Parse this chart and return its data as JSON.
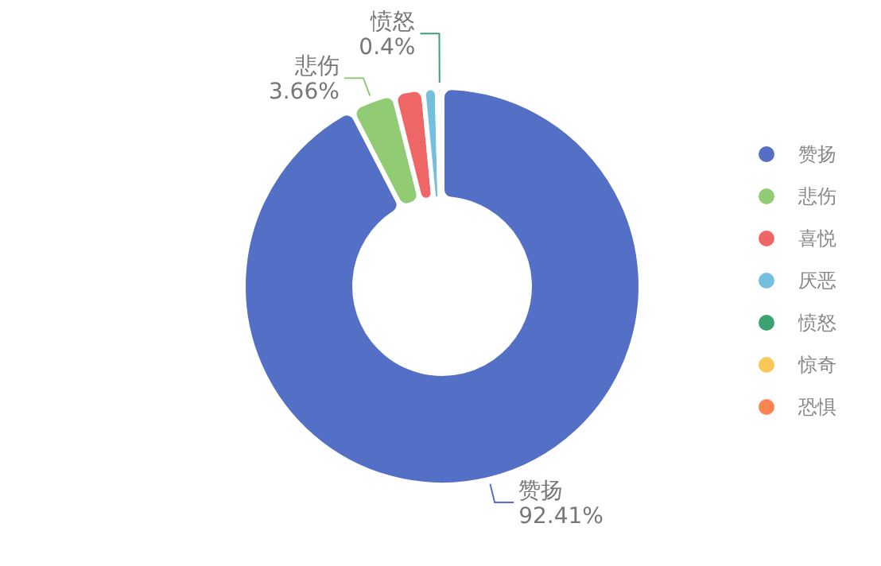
{
  "chart_data": {
    "type": "donut",
    "categories": [
      "赞扬",
      "悲伤",
      "喜悦",
      "厌恶",
      "愤怒",
      "惊奇",
      "恐惧"
    ],
    "values": [
      92.41,
      3.66,
      2.4,
      1.13,
      0.4,
      0,
      0
    ],
    "colors": [
      "#5470c6",
      "#91cc75",
      "#ee6666",
      "#73c0de",
      "#3ba272",
      "#fac858",
      "#fc8452"
    ],
    "value_labels": [
      "92.41%",
      "3.66%",
      null,
      null,
      "0.4%",
      null,
      null
    ],
    "legend": "right"
  }
}
